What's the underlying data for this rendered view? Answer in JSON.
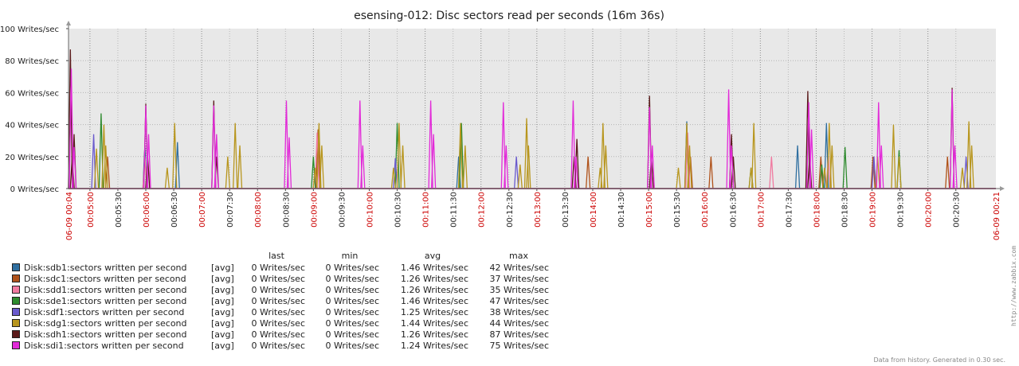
{
  "chart_data": {
    "type": "line",
    "title": "esensing-012: Disc sectors read per seconds (16m 36s)",
    "y_unit": "Writes/sec",
    "ylim": [
      0,
      100
    ],
    "yticks": [
      "0 Writes/sec",
      "20 Writes/sec",
      "40 Writes/sec",
      "60 Writes/sec",
      "80 Writes/sec",
      "100 Writes/sec"
    ],
    "x_range": [
      "00:04:37",
      "00:21:13"
    ],
    "x_start_label": "06-09 00:04",
    "x_end_label": "06-09 00:21",
    "xticks": [
      "00:05:00",
      "00:05:30",
      "00:06:00",
      "00:06:30",
      "00:07:00",
      "00:07:30",
      "00:08:00",
      "00:08:30",
      "00:09:00",
      "00:09:30",
      "00:10:00",
      "00:10:30",
      "00:11:00",
      "00:11:30",
      "00:12:00",
      "00:12:30",
      "00:13:00",
      "00:13:30",
      "00:14:00",
      "00:14:30",
      "00:15:00",
      "00:15:30",
      "00:16:00",
      "00:16:30",
      "00:17:00",
      "00:17:30",
      "00:18:00",
      "00:18:30",
      "00:19:00",
      "00:19:30",
      "00:20:00",
      "00:20:30"
    ],
    "grid": true,
    "legend_columns": [
      "last",
      "min",
      "avg",
      "max"
    ],
    "series": [
      {
        "name": "Disk:sdb1:sectors written per second",
        "func": "[avg]",
        "last": "0 Writes/sec",
        "min": "0 Writes/sec",
        "avg": "1.46 Writes/sec",
        "max": "42 Writes/sec",
        "color": "#2f6fa0",
        "points": [
          [
            "00:05:59",
            27
          ],
          [
            "00:06:34",
            29
          ],
          [
            "00:11:36",
            20
          ],
          [
            "00:15:41",
            42
          ],
          [
            "00:17:40",
            27
          ],
          [
            "00:18:11",
            41
          ]
        ]
      },
      {
        "name": "Disk:sdc1:sectors written per second",
        "func": "[avg]",
        "last": "0 Writes/sec",
        "min": "0 Writes/sec",
        "avg": "1.26 Writes/sec",
        "max": "37 Writes/sec",
        "color": "#b0521a",
        "points": [
          [
            "00:05:19",
            20
          ],
          [
            "00:09:05",
            37
          ],
          [
            "00:13:55",
            20
          ],
          [
            "00:15:45",
            20
          ],
          [
            "00:16:07",
            20
          ],
          [
            "00:18:05",
            20
          ],
          [
            "00:19:01",
            20
          ],
          [
            "00:20:21",
            20
          ]
        ]
      },
      {
        "name": "Disk:sdd1:sectors written per second",
        "func": "[avg]",
        "last": "0 Writes/sec",
        "min": "0 Writes/sec",
        "avg": "1.26 Writes/sec",
        "max": "35 Writes/sec",
        "color": "#f07aa0",
        "points": [
          [
            "00:05:59",
            20
          ],
          [
            "00:09:04",
            35
          ],
          [
            "00:15:42",
            35
          ],
          [
            "00:17:12",
            20
          ],
          [
            "00:18:13",
            20
          ]
        ]
      },
      {
        "name": "Disk:sde1:sectors written per second",
        "func": "[avg]",
        "last": "0 Writes/sec",
        "min": "0 Writes/sec",
        "avg": "1.46 Writes/sec",
        "max": "47 Writes/sec",
        "color": "#2e8b2e",
        "points": [
          [
            "00:05:12",
            47
          ],
          [
            "00:09:00",
            20
          ],
          [
            "00:10:30",
            41
          ],
          [
            "00:11:39",
            41
          ],
          [
            "00:16:50",
            13
          ],
          [
            "00:18:06",
            15
          ],
          [
            "00:18:31",
            26
          ],
          [
            "00:19:29",
            24
          ]
        ]
      },
      {
        "name": "Disk:sdf1:sectors written per second",
        "func": "[avg]",
        "last": "0 Writes/sec",
        "min": "0 Writes/sec",
        "avg": "1.25 Writes/sec",
        "max": "38 Writes/sec",
        "color": "#6a5acd",
        "points": [
          [
            "00:05:04",
            34
          ],
          [
            "00:10:28",
            19
          ],
          [
            "00:12:38",
            20
          ],
          [
            "00:19:02",
            20
          ],
          [
            "00:20:41",
            20
          ]
        ]
      },
      {
        "name": "Disk:sdg1:sectors written per second",
        "func": "[avg]",
        "last": "0 Writes/sec",
        "min": "0 Writes/sec",
        "avg": "1.44 Writes/sec",
        "max": "44 Writes/sec",
        "color": "#b8961e",
        "points": [
          [
            "00:05:07",
            25
          ],
          [
            "00:05:15",
            40
          ],
          [
            "00:05:17",
            27
          ],
          [
            "00:06:23",
            13
          ],
          [
            "00:06:31",
            41
          ],
          [
            "00:07:28",
            20
          ],
          [
            "00:07:36",
            41
          ],
          [
            "00:07:41",
            27
          ],
          [
            "00:09:02",
            13
          ],
          [
            "00:09:06",
            41
          ],
          [
            "00:09:09",
            27
          ],
          [
            "00:10:26",
            13
          ],
          [
            "00:10:32",
            41
          ],
          [
            "00:10:36",
            27
          ],
          [
            "00:11:38",
            41
          ],
          [
            "00:11:43",
            27
          ],
          [
            "00:12:42",
            15
          ],
          [
            "00:12:49",
            44
          ],
          [
            "00:12:51",
            27
          ],
          [
            "00:14:08",
            13
          ],
          [
            "00:14:11",
            41
          ],
          [
            "00:14:14",
            27
          ],
          [
            "00:15:32",
            13
          ],
          [
            "00:15:41",
            41
          ],
          [
            "00:15:44",
            27
          ],
          [
            "00:16:50",
            13
          ],
          [
            "00:16:53",
            41
          ],
          [
            "00:18:09",
            13
          ],
          [
            "00:18:14",
            41
          ],
          [
            "00:18:17",
            27
          ],
          [
            "00:19:06",
            20
          ],
          [
            "00:19:23",
            40
          ],
          [
            "00:19:29",
            20
          ],
          [
            "00:20:37",
            13
          ],
          [
            "00:20:44",
            42
          ],
          [
            "00:20:47",
            27
          ]
        ]
      },
      {
        "name": "Disk:sdh1:sectors written per second",
        "func": "[avg]",
        "last": "0 Writes/sec",
        "min": "0 Writes/sec",
        "avg": "1.26 Writes/sec",
        "max": "87 Writes/sec",
        "color": "#5a1a1a",
        "points": [
          [
            "00:04:39",
            87
          ],
          [
            "00:04:41",
            20
          ],
          [
            "00:04:43",
            34
          ],
          [
            "00:06:00",
            53
          ],
          [
            "00:06:02",
            20
          ],
          [
            "00:07:13",
            55
          ],
          [
            "00:07:16",
            20
          ],
          [
            "00:13:40",
            20
          ],
          [
            "00:13:43",
            31
          ],
          [
            "00:15:01",
            58
          ],
          [
            "00:15:03",
            20
          ],
          [
            "00:16:29",
            34
          ],
          [
            "00:16:31",
            20
          ],
          [
            "00:17:51",
            61
          ],
          [
            "00:17:53",
            20
          ],
          [
            "00:20:26",
            63
          ]
        ]
      },
      {
        "name": "Disk:sdi1:sectors written per second",
        "func": "[avg]",
        "last": "0 Writes/sec",
        "min": "0 Writes/sec",
        "avg": "1.24 Writes/sec",
        "max": "75 Writes/sec",
        "color": "#e22ad8",
        "points": [
          [
            "00:04:40",
            75
          ],
          [
            "00:04:43",
            26
          ],
          [
            "00:06:00",
            52
          ],
          [
            "00:06:03",
            34
          ],
          [
            "00:07:13",
            52
          ],
          [
            "00:07:16",
            34
          ],
          [
            "00:08:31",
            55
          ],
          [
            "00:08:34",
            32
          ],
          [
            "00:09:50",
            55
          ],
          [
            "00:09:53",
            27
          ],
          [
            "00:11:06",
            55
          ],
          [
            "00:11:09",
            34
          ],
          [
            "00:12:24",
            54
          ],
          [
            "00:12:27",
            27
          ],
          [
            "00:13:39",
            55
          ],
          [
            "00:13:42",
            20
          ],
          [
            "00:15:01",
            51
          ],
          [
            "00:15:04",
            27
          ],
          [
            "00:16:26",
            62
          ],
          [
            "00:16:29",
            27
          ],
          [
            "00:17:52",
            54
          ],
          [
            "00:17:55",
            37
          ],
          [
            "00:19:07",
            54
          ],
          [
            "00:19:10",
            27
          ],
          [
            "00:20:26",
            62
          ],
          [
            "00:20:29",
            27
          ]
        ]
      }
    ]
  },
  "footer": "Data from history. Generated in 0.30 sec.",
  "watermark": "http://www.zabbix.com"
}
